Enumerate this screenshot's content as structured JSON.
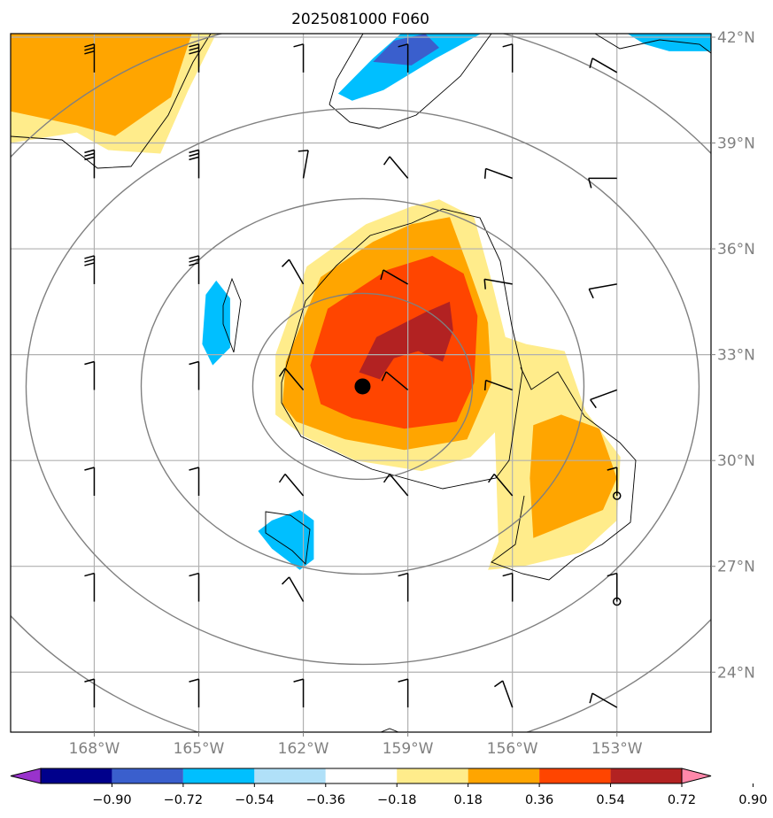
{
  "chart_data": {
    "type": "heatmap",
    "title": "2025081000 F060",
    "xlabel": "",
    "ylabel": "",
    "xlim": [
      -170.4,
      -150.3
    ],
    "ylim": [
      22.3,
      42.1
    ],
    "grid": true,
    "x_ticks": [
      {
        "value": -168,
        "label": "168°W"
      },
      {
        "value": -165,
        "label": "165°W"
      },
      {
        "value": -162,
        "label": "162°W"
      },
      {
        "value": -159,
        "label": "159°W"
      },
      {
        "value": -156,
        "label": "156°W"
      },
      {
        "value": -153,
        "label": "153°W"
      }
    ],
    "y_ticks": [
      {
        "value": 24,
        "label": "24°N"
      },
      {
        "value": 27,
        "label": "27°N"
      },
      {
        "value": 30,
        "label": "30°N"
      },
      {
        "value": 33,
        "label": "33°N"
      },
      {
        "value": 36,
        "label": "36°N"
      },
      {
        "value": 39,
        "label": "39°N"
      },
      {
        "value": 42,
        "label": "42°N"
      }
    ],
    "colorbar": {
      "placement": "bottom",
      "extend": "both",
      "levels": [
        -0.9,
        -0.72,
        -0.54,
        -0.36,
        -0.18,
        0.18,
        0.36,
        0.54,
        0.72,
        0.9
      ],
      "tick_labels": [
        "−0.90",
        "−0.72",
        "−0.54",
        "−0.36",
        "−0.18",
        "0.18",
        "0.36",
        "0.54",
        "0.72",
        "0.90"
      ],
      "colors": [
        "#9932cc",
        "#00008b",
        "#3a5fcd",
        "#00bfff",
        "#b0e0f8",
        "#ffffff",
        "#ffec8b",
        "#ffa500",
        "#ff4500",
        "#b22222",
        "#ff88aa"
      ]
    },
    "center_marker": {
      "lon": -160.3,
      "lat": 32.1
    },
    "range_rings_center": {
      "lon": -160.3,
      "lat": 32.1
    },
    "station_markers": [
      {
        "lon": -153.0,
        "lat": 29.0
      },
      {
        "lon": -153.0,
        "lat": 26.0
      }
    ],
    "shaded_regions": [
      {
        "level": 0.18,
        "points": [
          [
            -170.4,
            42.1
          ],
          [
            -164.5,
            42.1
          ],
          [
            -165.3,
            40.5
          ],
          [
            -166.1,
            38.7
          ],
          [
            -167.6,
            38.8
          ],
          [
            -168.5,
            39.3
          ],
          [
            -170.4,
            39.0
          ]
        ]
      },
      {
        "level": 0.36,
        "points": [
          [
            -170.4,
            42.1
          ],
          [
            -165.2,
            42.1
          ],
          [
            -165.8,
            40.3
          ],
          [
            -167.4,
            39.2
          ],
          [
            -168.5,
            39.5
          ],
          [
            -170.4,
            39.9
          ]
        ]
      },
      {
        "level": 0.18,
        "points": [
          [
            -162.8,
            33.0
          ],
          [
            -161.9,
            35.5
          ],
          [
            -160.2,
            36.7
          ],
          [
            -158.9,
            37.2
          ],
          [
            -158.1,
            37.4
          ],
          [
            -157.1,
            36.9
          ],
          [
            -156.6,
            35.1
          ],
          [
            -156.2,
            33.5
          ],
          [
            -155.6,
            33.3
          ],
          [
            -154.5,
            33.1
          ],
          [
            -153.9,
            31.4
          ],
          [
            -152.9,
            30.1
          ],
          [
            -153.0,
            28.3
          ],
          [
            -154.0,
            27.4
          ],
          [
            -155.7,
            27.0
          ],
          [
            -156.7,
            26.9
          ],
          [
            -156.4,
            27.7
          ],
          [
            -156.5,
            30.8
          ],
          [
            -157.2,
            30.1
          ],
          [
            -158.6,
            29.7
          ],
          [
            -160.5,
            30.0
          ],
          [
            -162.0,
            30.7
          ],
          [
            -162.8,
            31.3
          ]
        ]
      },
      {
        "level": 0.36,
        "points": [
          [
            -162.5,
            32.8
          ],
          [
            -161.5,
            35.2
          ],
          [
            -160.0,
            36.2
          ],
          [
            -158.9,
            36.7
          ],
          [
            -157.8,
            36.9
          ],
          [
            -157.2,
            35.3
          ],
          [
            -156.7,
            33.9
          ],
          [
            -156.6,
            32.2
          ],
          [
            -157.3,
            30.6
          ],
          [
            -159.1,
            30.3
          ],
          [
            -160.8,
            30.6
          ],
          [
            -162.2,
            31.1
          ],
          [
            -162.6,
            31.6
          ]
        ]
      },
      {
        "level": 0.36,
        "points": [
          [
            -154.6,
            31.3
          ],
          [
            -153.5,
            30.9
          ],
          [
            -153.0,
            29.5
          ],
          [
            -153.4,
            28.6
          ],
          [
            -154.4,
            28.2
          ],
          [
            -155.4,
            27.8
          ],
          [
            -155.5,
            29.5
          ],
          [
            -155.4,
            31.0
          ]
        ]
      },
      {
        "level": 0.54,
        "points": [
          [
            -161.8,
            32.7
          ],
          [
            -161.3,
            34.3
          ],
          [
            -159.6,
            35.4
          ],
          [
            -158.3,
            35.8
          ],
          [
            -157.4,
            35.3
          ],
          [
            -157.0,
            34.1
          ],
          [
            -157.1,
            32.2
          ],
          [
            -157.6,
            31.1
          ],
          [
            -159.1,
            30.9
          ],
          [
            -160.6,
            31.2
          ],
          [
            -161.5,
            31.6
          ]
        ]
      },
      {
        "level": 0.72,
        "points": [
          [
            -160.4,
            32.5
          ],
          [
            -159.9,
            33.5
          ],
          [
            -158.5,
            34.2
          ],
          [
            -157.8,
            34.5
          ],
          [
            -157.7,
            33.7
          ],
          [
            -158.0,
            32.8
          ],
          [
            -158.7,
            33.1
          ],
          [
            -159.4,
            32.9
          ],
          [
            -159.8,
            32.3
          ]
        ]
      },
      {
        "level": -0.36,
        "points": [
          [
            -164.8,
            34.7
          ],
          [
            -164.5,
            35.1
          ],
          [
            -164.1,
            34.6
          ],
          [
            -164.1,
            33.2
          ],
          [
            -164.6,
            32.7
          ],
          [
            -164.9,
            33.3
          ]
        ]
      },
      {
        "level": -0.36,
        "points": [
          [
            -162.9,
            28.3
          ],
          [
            -162.1,
            28.6
          ],
          [
            -161.7,
            28.3
          ],
          [
            -161.7,
            27.2
          ],
          [
            -162.1,
            26.9
          ],
          [
            -162.9,
            27.5
          ],
          [
            -163.3,
            28.0
          ]
        ]
      },
      {
        "level": -0.36,
        "points": [
          [
            -161.0,
            40.4
          ],
          [
            -160.0,
            41.4
          ],
          [
            -159.2,
            42.1
          ],
          [
            -156.9,
            42.1
          ],
          [
            -158.2,
            41.4
          ],
          [
            -159.7,
            40.5
          ],
          [
            -160.6,
            40.2
          ]
        ]
      },
      {
        "level": -0.54,
        "points": [
          [
            -160.0,
            41.3
          ],
          [
            -159.4,
            41.9
          ],
          [
            -158.5,
            42.1
          ],
          [
            -158.1,
            41.7
          ],
          [
            -158.9,
            41.2
          ]
        ]
      },
      {
        "level": -0.36,
        "points": [
          [
            -152.7,
            42.1
          ],
          [
            -150.3,
            42.1
          ],
          [
            -150.3,
            41.6
          ],
          [
            -151.5,
            41.6
          ],
          [
            -152.2,
            41.8
          ]
        ]
      }
    ]
  }
}
